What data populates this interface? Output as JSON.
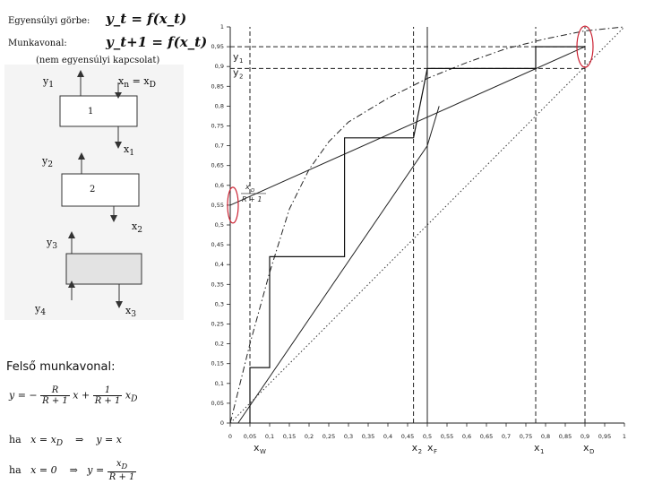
{
  "header": {
    "equilibrium_label": "Egyensúlyi görbe:",
    "equilibrium_formula": "y_t = f(x_t)",
    "operating_label": "Munkavonal:",
    "operating_formula": "y_t+1 = f(x_t)",
    "operating_note": "(nem egyensúlyi kapcsolat)"
  },
  "column": {
    "y1": "y",
    "y1_sub": "1",
    "xd": "x",
    "xd_sub": "D",
    "plate1": "1",
    "x1": "x",
    "x1_sub": "1",
    "y2": "y",
    "y2_sub": "2",
    "plate2": "2",
    "x2": "x",
    "x2_sub": "2",
    "y3": "y",
    "y3_sub": "3",
    "y4": "y",
    "y4_sub": "4",
    "x3": "x",
    "x3_sub": "3"
  },
  "bottom": {
    "title": "Felső munkavonal:",
    "eq_lhs": "y = −",
    "eq_r": "R",
    "eq_r1": "R + 1",
    "eq_x": "x +",
    "eq_one": "1",
    "eq_xd": "x",
    "eq_xd_sub": "D",
    "case1_if": "ha",
    "case1_cond": "x = x",
    "case1_cond_sub": "D",
    "case1_arrow": "⇒",
    "case1_res": "y = x",
    "case2_if": "ha",
    "case2_cond": "x = 0",
    "case2_arrow": "⇒",
    "case2_res": "y =",
    "case2_num": "x",
    "case2_num_sub": "D",
    "case2_den": "R + 1"
  },
  "chart_data": {
    "type": "line",
    "xlim": [
      0,
      1
    ],
    "ylim": [
      0,
      1
    ],
    "xticks": [
      "0",
      "0,05",
      "0,1",
      "0,15",
      "0,2",
      "0,25",
      "0,3",
      "0,35",
      "0,4",
      "0,45",
      "0,5",
      "0,55",
      "0,6",
      "0,65",
      "0,7",
      "0,75",
      "0,8",
      "0,85",
      "0,9",
      "0,95",
      "1"
    ],
    "yticks": [
      "0",
      "0,05",
      "0,1",
      "0,15",
      "0,2",
      "0,25",
      "0,3",
      "0,35",
      "0,4",
      "0,45",
      "0,5",
      "0,55",
      "0,6",
      "0,65",
      "0,7",
      "0,75",
      "0,8",
      "0,85",
      "0,9",
      "0,95",
      "1"
    ],
    "equilibrium_curve": {
      "style": "dash-dot",
      "x": [
        0,
        0.02,
        0.05,
        0.1,
        0.15,
        0.2,
        0.25,
        0.3,
        0.4,
        0.5,
        0.6,
        0.7,
        0.8,
        0.9,
        1.0
      ],
      "y": [
        0,
        0.08,
        0.2,
        0.38,
        0.54,
        0.64,
        0.71,
        0.76,
        0.82,
        0.87,
        0.91,
        0.945,
        0.97,
        0.99,
        1.0
      ]
    },
    "diagonal": {
      "style": "dotted",
      "x": [
        0,
        1
      ],
      "y": [
        0,
        1
      ]
    },
    "upper_operating_line": {
      "x": [
        0,
        0.9
      ],
      "y": [
        0.55,
        0.95
      ]
    },
    "lower_operating_line": {
      "x": [
        0.02,
        0.5,
        0.53
      ],
      "y": [
        0.0,
        0.7,
        0.8
      ]
    },
    "steps": {
      "x": [
        0.9,
        0.775,
        0.775,
        0.5,
        0.5,
        0.465,
        0.465,
        0.29,
        0.29,
        0.1,
        0.1,
        0.05,
        0.05
      ],
      "y": [
        0.95,
        0.95,
        0.895,
        0.895,
        0.895,
        0.72,
        0.72,
        0.72,
        0.42,
        0.42,
        0.14,
        0.14,
        0.0
      ]
    },
    "vertical_markers": [
      {
        "x": 0.05,
        "style": "dashed"
      },
      {
        "x": 0.465,
        "style": "dashed"
      },
      {
        "x": 0.5,
        "style": "solid"
      },
      {
        "x": 0.775,
        "style": "dashed"
      },
      {
        "x": 0.9,
        "style": "dashed"
      }
    ],
    "horizontal_markers": [
      {
        "y": 0.95,
        "style": "dashed"
      },
      {
        "y": 0.895,
        "style": "dashed"
      }
    ],
    "intercept_label": {
      "numerator": "x",
      "numerator_sub": "D",
      "denominator": "R + 1"
    },
    "y_annotations": [
      {
        "text": "y",
        "sub": "1"
      },
      {
        "text": "y",
        "sub": "2"
      }
    ],
    "x_annotations": [
      {
        "text": "x",
        "sub": "W"
      },
      {
        "text": "x",
        "sub": "2"
      },
      {
        "text": "x",
        "sub": "F"
      },
      {
        "text": "x",
        "sub": "1"
      },
      {
        "text": "x",
        "sub": "D"
      }
    ],
    "highlight_color": "#cc2233"
  }
}
